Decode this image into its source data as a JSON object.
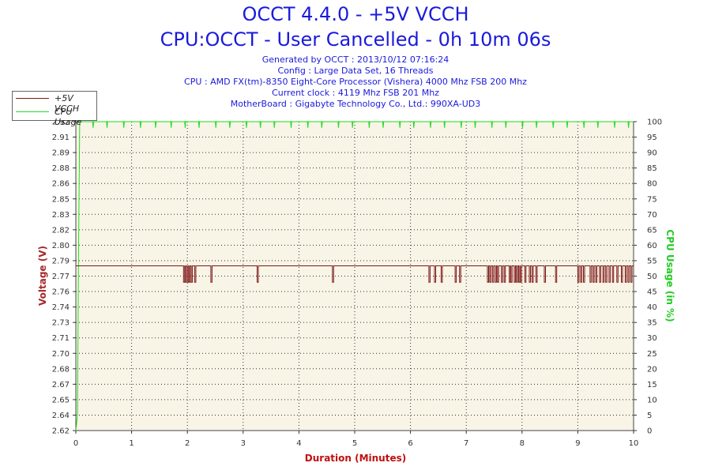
{
  "header": {
    "title": "OCCT 4.4.0 - +5V VCCH",
    "subtitle": "CPU:OCCT - User Cancelled - 0h 10m 06s",
    "info": [
      "Generated by OCCT : 2013/10/12 07:16:24",
      "Config : Large Data Set, 16 Threads",
      "CPU : AMD FX(tm)-8350 Eight-Core Processor (Vishera) 4000 Mhz FSB 200 Mhz",
      "Current clock : 4119 Mhz FSB 201 Mhz",
      "MotherBoard : Gigabyte Technology Co., Ltd.: 990XA-UD3"
    ]
  },
  "legend": {
    "items": [
      {
        "label": "+5V VCCH",
        "color": "#7d1616"
      },
      {
        "label": "CPU Usage",
        "color": "#22dd22"
      }
    ]
  },
  "colors": {
    "plot_bg": "#f8f4e6",
    "voltage": "#7d1616",
    "cpu": "#22dd22",
    "title": "#1a1adc",
    "xlabel": "#c01010",
    "ylabel_left": "#a52a2a",
    "ylabel_right": "#22cc22"
  },
  "chart_data": {
    "type": "line",
    "title": "OCCT 4.4.0 - +5V VCCH",
    "xlabel": "Duration (Minutes)",
    "ylabel": "Voltage (V)",
    "y2label": "CPU Usage (in %)",
    "xlim": [
      0,
      10
    ],
    "ylim": [
      2.62,
      2.92
    ],
    "y2lim": [
      0,
      100
    ],
    "x_ticks": [
      0,
      1,
      2,
      3,
      4,
      5,
      6,
      7,
      8,
      9,
      10
    ],
    "y_ticks": [
      "2.62",
      "2.64",
      "2.65",
      "2.67",
      "2.68",
      "2.70",
      "2.71",
      "2.73",
      "2.74",
      "2.76",
      "2.77",
      "2.79",
      "2.80",
      "2.82",
      "2.83",
      "2.85",
      "2.86",
      "2.88",
      "2.89",
      "2.91",
      "2.92"
    ],
    "y2_ticks": [
      0,
      5,
      10,
      15,
      20,
      25,
      30,
      35,
      40,
      45,
      50,
      55,
      60,
      65,
      70,
      75,
      80,
      85,
      90,
      95,
      100
    ],
    "grid": true,
    "legend_position": "top-left",
    "series": [
      {
        "name": "+5V VCCH",
        "axis": "left",
        "baseline": 2.78,
        "dip_value": 2.764,
        "dips": [
          1.93,
          1.96,
          2.0,
          2.03,
          2.07,
          2.13,
          2.42,
          3.25,
          4.6,
          6.33,
          6.43,
          6.55,
          6.8,
          6.88,
          7.38,
          7.42,
          7.47,
          7.52,
          7.56,
          7.63,
          7.68,
          7.77,
          7.8,
          7.86,
          7.9,
          7.94,
          7.97,
          8.05,
          8.13,
          8.18,
          8.25,
          8.4,
          8.6,
          9.0,
          9.05,
          9.1,
          9.22,
          9.27,
          9.32,
          9.39,
          9.45,
          9.5,
          9.56,
          9.62,
          9.7,
          9.78,
          9.85,
          9.9,
          9.95
        ]
      },
      {
        "name": "CPU Usage",
        "axis": "right",
        "start": [
          [
            0.0,
            0
          ],
          [
            0.03,
            5
          ],
          [
            0.05,
            60
          ],
          [
            0.07,
            100
          ]
        ],
        "plateau": 100,
        "dip_value": 98,
        "dips": [
          0.3,
          0.55,
          0.85,
          1.15,
          1.42,
          1.7,
          1.95,
          2.2,
          2.5,
          2.75,
          3.05,
          3.3,
          3.55,
          3.85,
          4.15,
          4.4,
          4.7,
          4.95,
          5.25,
          5.5,
          5.8,
          6.05,
          6.35,
          6.6,
          6.9,
          7.15,
          7.45,
          7.7,
          8.0,
          8.25,
          8.55,
          8.8,
          9.1,
          9.35,
          9.65,
          9.9
        ]
      }
    ]
  }
}
